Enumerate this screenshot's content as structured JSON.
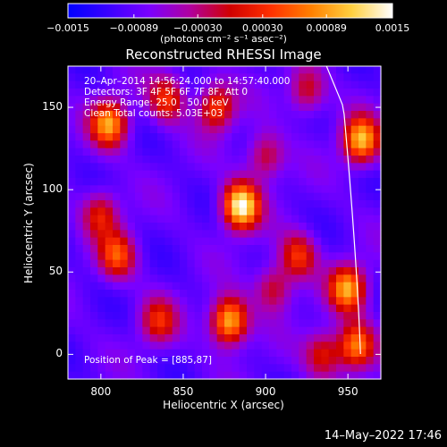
{
  "chart_data": {
    "type": "heatmap",
    "title": "Reconstructed RHESSI Image",
    "xlabel": "Heliocentric X (arcsec)",
    "ylabel": "Heliocentric Y (arcsec)",
    "xlim": [
      780,
      970
    ],
    "ylim": [
      -15,
      175
    ],
    "xticks": [
      "800",
      "850",
      "900",
      "950"
    ],
    "xtick_values": [
      800,
      850,
      900,
      950
    ],
    "yticks": [
      "0",
      "50",
      "100",
      "150"
    ],
    "ytick_values": [
      0,
      50,
      100,
      150
    ],
    "colorbar": {
      "range": [
        -0.0015,
        0.0015
      ],
      "tick_labels": [
        "−0.0015",
        "−0.00089",
        "−0.00030",
        "0.00030",
        "0.00089",
        "0.0015"
      ],
      "tick_values": [
        -0.0015,
        -0.00089,
        -0.0003,
        0.0003,
        0.00089,
        0.0015
      ],
      "unit": "(photons cm⁻² s⁻¹ asec⁻²)",
      "colors": [
        "#0000ff",
        "#3a00ff",
        "#7a00ff",
        "#b000a0",
        "#d00000",
        "#ff3000",
        "#ff8000",
        "#ffd040",
        "#ffffff"
      ]
    },
    "annotations": [
      "20–Apr–2014 14:56:24.000 to 14:57:40.000",
      "Detectors: 3F 4F 5F 6F 7F 8F, Att 0",
      "Energy Range: 25.0 – 50.0 keV",
      "Clean     Total counts: 5.03E+03"
    ],
    "peak_label": "Position of Peak = [885,87]",
    "peak": [
      885,
      87
    ],
    "limb_color": "#ffffff",
    "blobs": [
      {
        "x": 885,
        "y": 90,
        "amp": 1.0
      },
      {
        "x": 878,
        "y": 20,
        "amp": 0.85
      },
      {
        "x": 805,
        "y": 140,
        "amp": 0.75
      },
      {
        "x": 958,
        "y": 130,
        "amp": 0.8
      },
      {
        "x": 950,
        "y": 40,
        "amp": 0.75
      },
      {
        "x": 955,
        "y": 5,
        "amp": 0.7
      },
      {
        "x": 810,
        "y": 60,
        "amp": 0.55
      },
      {
        "x": 835,
        "y": 20,
        "amp": 0.45
      },
      {
        "x": 840,
        "y": 155,
        "amp": 0.5
      },
      {
        "x": 870,
        "y": 150,
        "amp": 0.55
      },
      {
        "x": 920,
        "y": 60,
        "amp": 0.5
      },
      {
        "x": 900,
        "y": 120,
        "amp": 0.4
      },
      {
        "x": 935,
        "y": 0,
        "amp": 0.45
      },
      {
        "x": 800,
        "y": 85,
        "amp": 0.45
      },
      {
        "x": 925,
        "y": 160,
        "amp": 0.4
      },
      {
        "x": 905,
        "y": 40,
        "amp": 0.4
      }
    ]
  },
  "timestamp": "14–May–2022 17:46"
}
